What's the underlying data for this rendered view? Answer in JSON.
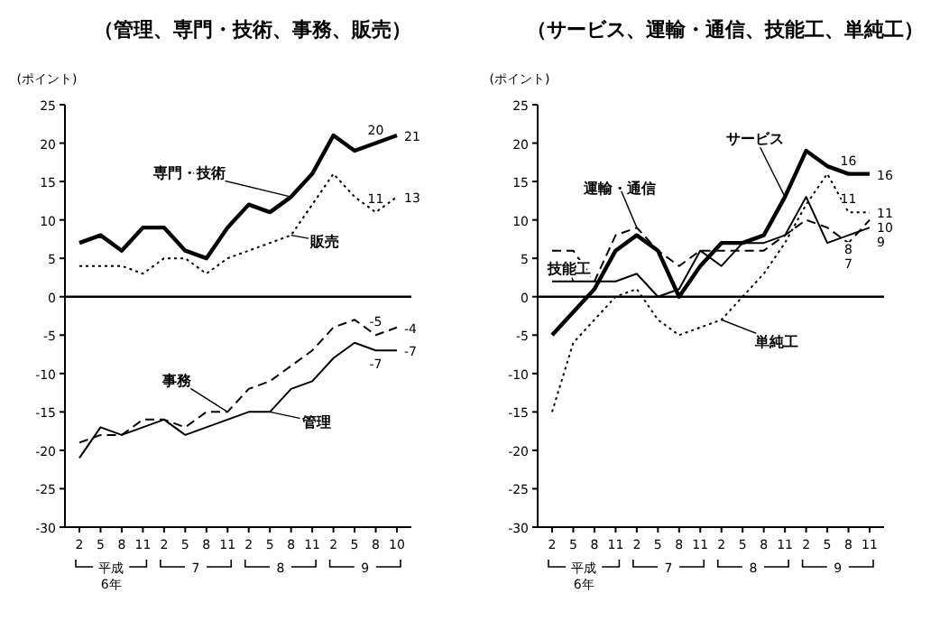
{
  "chart_data": [
    {
      "type": "line",
      "title": "（管理、専門・技術、事務、販売）",
      "ylabel": "(ポイント)",
      "ylim": [
        -30,
        25
      ],
      "yticks": [
        25,
        20,
        15,
        10,
        5,
        0,
        -5,
        -10,
        -15,
        -20,
        -25,
        -30
      ],
      "ref_lines": [
        {
          "axis": "y",
          "value": 0
        }
      ],
      "categories": [
        "2",
        "5",
        "8",
        "11",
        "2",
        "5",
        "8",
        "11",
        "2",
        "5",
        "8",
        "11",
        "2",
        "5",
        "8",
        "10"
      ],
      "annotations": [
        "平成\n6年",
        "7",
        "8",
        "9"
      ],
      "series": [
        {
          "name": "専門・技術",
          "color": "#000000",
          "line_style": "solid",
          "values": [
            7,
            8,
            6,
            9,
            9,
            6,
            5,
            9,
            12,
            11,
            13,
            16,
            21,
            19,
            20,
            21
          ],
          "value_labels": [
            null,
            null,
            null,
            null,
            null,
            null,
            null,
            null,
            null,
            null,
            null,
            null,
            null,
            null,
            "20",
            "21"
          ]
        },
        {
          "name": "販売",
          "color": "#000000",
          "line_style": "dotted",
          "values": [
            4,
            4,
            4,
            3,
            5,
            5,
            3,
            5,
            6,
            7,
            8,
            12,
            16,
            13,
            11,
            13
          ],
          "value_labels": [
            null,
            null,
            null,
            null,
            null,
            null,
            null,
            null,
            null,
            null,
            null,
            null,
            null,
            null,
            "11",
            "13"
          ]
        },
        {
          "name": "事務",
          "color": "#000000",
          "line_style": "dashed",
          "values": [
            -19,
            -18,
            -18,
            -16,
            -16,
            -17,
            -15,
            -15,
            -12,
            -11,
            -9,
            -7,
            -4,
            -3,
            -5,
            -4
          ],
          "value_labels": [
            null,
            null,
            null,
            null,
            null,
            null,
            null,
            null,
            null,
            null,
            null,
            null,
            null,
            null,
            "-5",
            "-4"
          ]
        },
        {
          "name": "管理",
          "color": "#000000",
          "line_style": "solid",
          "values": [
            -21,
            -17,
            -18,
            -17,
            -16,
            -18,
            -17,
            -16,
            -15,
            -15,
            -12,
            -11,
            -8,
            -6,
            -7,
            -7
          ],
          "value_labels": [
            null,
            null,
            null,
            null,
            null,
            null,
            null,
            null,
            null,
            null,
            null,
            null,
            null,
            null,
            "-7",
            "-7"
          ]
        }
      ]
    },
    {
      "type": "line",
      "title": "（サービス、運輸・通信、技能工、単純工）",
      "ylabel": "(ポイント)",
      "ylim": [
        -30,
        25
      ],
      "yticks": [
        25,
        20,
        15,
        10,
        5,
        0,
        -5,
        -10,
        -15,
        -20,
        -25,
        -30
      ],
      "ref_lines": [
        {
          "axis": "y",
          "value": 0
        }
      ],
      "categories": [
        "2",
        "5",
        "8",
        "11",
        "2",
        "5",
        "8",
        "11",
        "2",
        "5",
        "8",
        "11",
        "2",
        "5",
        "8",
        "11"
      ],
      "annotations": [
        "平成\n6年",
        "7",
        "8",
        "9"
      ],
      "series": [
        {
          "name": "サービス",
          "color": "#000000",
          "line_style": "solid",
          "values": [
            -5,
            -2,
            1,
            6,
            8,
            6,
            0,
            4,
            7,
            7,
            8,
            13,
            19,
            17,
            16,
            16
          ],
          "value_labels": [
            null,
            null,
            null,
            null,
            null,
            null,
            null,
            null,
            null,
            null,
            null,
            null,
            null,
            null,
            "16",
            "16"
          ]
        },
        {
          "name": "運輸・通信",
          "color": "#000000",
          "line_style": "dashed",
          "values": [
            6,
            6,
            2,
            8,
            9,
            6,
            4,
            6,
            6,
            6,
            6,
            8,
            10,
            9,
            7,
            10
          ],
          "value_labels": [
            null,
            null,
            null,
            null,
            null,
            null,
            null,
            null,
            null,
            null,
            null,
            null,
            null,
            null,
            "7",
            "10"
          ]
        },
        {
          "name": "技能工",
          "color": "#000000",
          "line_style": "solid",
          "values": [
            2,
            2,
            2,
            2,
            3,
            0,
            1,
            6,
            4,
            7,
            7,
            8,
            13,
            7,
            8,
            9
          ],
          "value_labels": [
            null,
            null,
            null,
            null,
            null,
            null,
            null,
            null,
            null,
            null,
            null,
            null,
            null,
            null,
            "8",
            "9"
          ]
        },
        {
          "name": "単純工",
          "color": "#000000",
          "line_style": "dotted",
          "values": [
            -15,
            -6,
            -3,
            0,
            1,
            -3,
            -5,
            -4,
            -3,
            0,
            3,
            7,
            12,
            16,
            11,
            11
          ],
          "value_labels": [
            null,
            null,
            null,
            null,
            null,
            null,
            null,
            null,
            null,
            null,
            null,
            null,
            null,
            null,
            "11",
            "11"
          ]
        }
      ]
    }
  ]
}
